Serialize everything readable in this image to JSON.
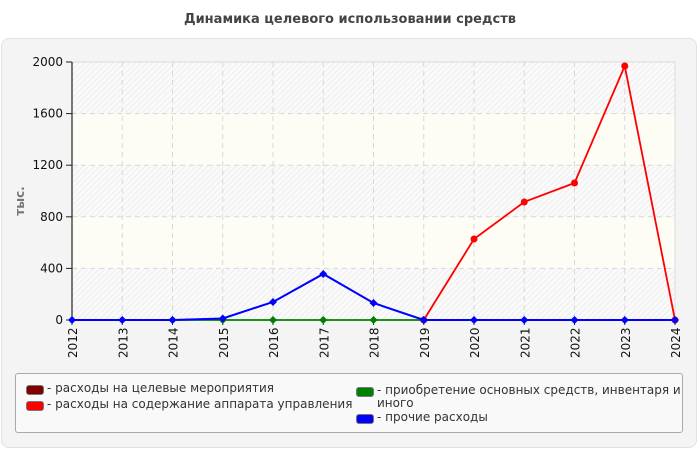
{
  "chart_data": {
    "type": "line",
    "title": "Динамика целевого использовании средств",
    "xlabel": "",
    "ylabel": "тыс.",
    "ylim": [
      0,
      2000
    ],
    "yticks": [
      0,
      400,
      800,
      1200,
      1600,
      2000
    ],
    "grid": true,
    "legend_position": "bottom",
    "x": [
      "2012",
      "2013",
      "2014",
      "2015",
      "2016",
      "2017",
      "2018",
      "2019",
      "2020",
      "2021",
      "2022",
      "2023",
      "2024"
    ],
    "series": [
      {
        "name": "расходы на целевые мероприятия",
        "color": "#800000",
        "values": [
          null,
          null,
          null,
          null,
          null,
          null,
          null,
          null,
          null,
          null,
          null,
          null,
          null
        ]
      },
      {
        "name": "расходы на содержание аппарата управления",
        "color": "#ff0000",
        "values": [
          null,
          null,
          null,
          null,
          null,
          null,
          null,
          0,
          628,
          915,
          1062,
          1969,
          0
        ]
      },
      {
        "name": "приобретение основных средств, инвентаря и иного",
        "color": "#008000",
        "values": [
          null,
          null,
          0,
          0,
          0,
          0,
          0,
          0,
          null,
          null,
          null,
          null,
          null
        ]
      },
      {
        "name": "прочие расходы",
        "color": "#0000ff",
        "values": [
          0,
          0,
          0,
          12,
          140,
          357,
          132,
          0,
          0,
          0,
          0,
          0,
          0
        ]
      }
    ]
  },
  "legend": {
    "items": [
      {
        "label": "- расходы на целевые мероприятия",
        "color": "#800000"
      },
      {
        "label": "- расходы на содержание аппарата управления",
        "color": "#ff0000"
      },
      {
        "label": "- приобретение основных средств, инвентаря и иного",
        "color": "#008000"
      },
      {
        "label": "- прочие расходы",
        "color": "#0000ff"
      }
    ]
  }
}
